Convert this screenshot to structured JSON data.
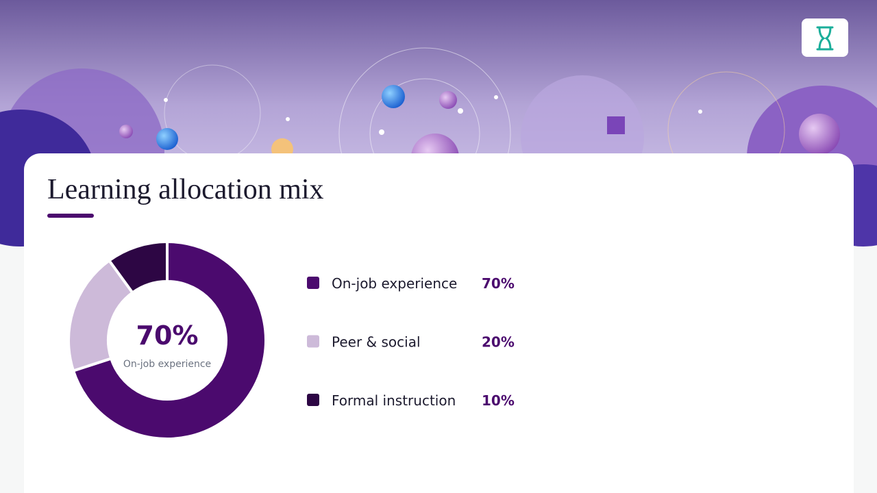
{
  "chart_data": {
    "type": "pie",
    "donut": true,
    "title": "Learning allocation mix",
    "categories": [
      "On-job experience",
      "Peer & social",
      "Formal instruction"
    ],
    "values": [
      70,
      20,
      10
    ],
    "value_labels": [
      "70%",
      "20%",
      "10%"
    ],
    "colors": [
      "#4b0a6e",
      "#cdbad9",
      "#2d0644"
    ]
  }
}
